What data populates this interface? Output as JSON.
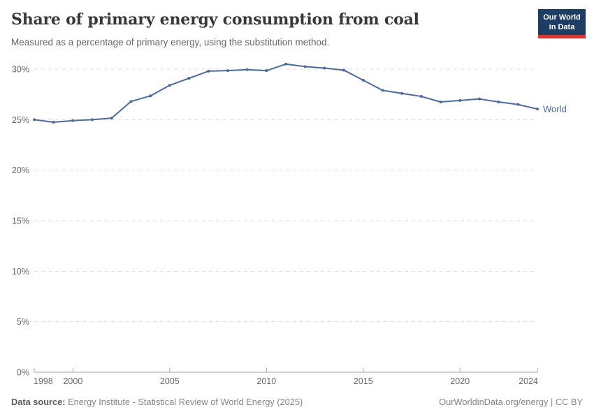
{
  "header": {
    "logo": {
      "line1": "Our World",
      "line2": "in Data"
    }
  },
  "chart_data": {
    "type": "line",
    "title": "Share of primary energy consumption from coal",
    "subtitle": "Measured as a percentage of primary energy, using the substitution method.",
    "xlabel": "",
    "ylabel": "",
    "xlim": [
      1998,
      2024
    ],
    "ylim": [
      0,
      30
    ],
    "grid": "horizontal-dashed",
    "legend_position": "end-of-line",
    "xticks": [
      {
        "value": 1998,
        "label": "1998"
      },
      {
        "value": 2000,
        "label": "2000"
      },
      {
        "value": 2005,
        "label": "2005"
      },
      {
        "value": 2010,
        "label": "2010"
      },
      {
        "value": 2015,
        "label": "2015"
      },
      {
        "value": 2020,
        "label": "2020"
      },
      {
        "value": 2024,
        "label": "2024"
      }
    ],
    "yticks": [
      {
        "value": 0,
        "label": "0%"
      },
      {
        "value": 5,
        "label": "5%"
      },
      {
        "value": 10,
        "label": "10%"
      },
      {
        "value": 15,
        "label": "15%"
      },
      {
        "value": 20,
        "label": "20%"
      },
      {
        "value": 25,
        "label": "25%"
      },
      {
        "value": 30,
        "label": "30%"
      }
    ],
    "x": [
      1998,
      1999,
      2000,
      2001,
      2002,
      2003,
      2004,
      2005,
      2006,
      2007,
      2008,
      2009,
      2010,
      2011,
      2012,
      2013,
      2014,
      2015,
      2016,
      2017,
      2018,
      2019,
      2020,
      2021,
      2022,
      2023,
      2024
    ],
    "series": [
      {
        "name": "World",
        "color": "#4c6a9c",
        "values": [
          25.0,
          24.75,
          24.9,
          25.0,
          25.15,
          26.8,
          27.35,
          28.4,
          29.1,
          29.8,
          29.85,
          29.95,
          29.85,
          30.5,
          30.25,
          30.1,
          29.9,
          28.9,
          27.9,
          27.6,
          27.3,
          26.75,
          26.9,
          27.05,
          26.75,
          26.5,
          26.05
        ]
      }
    ],
    "colors": {
      "grid": "#dddddd",
      "axis": "#a5a5a5",
      "tick_text": "#666666"
    }
  },
  "footer": {
    "source_label": "Data source:",
    "source_text": "Energy Institute - Statistical Review of World Energy (2025)",
    "credit": "OurWorldinData.org/energy | CC BY"
  }
}
